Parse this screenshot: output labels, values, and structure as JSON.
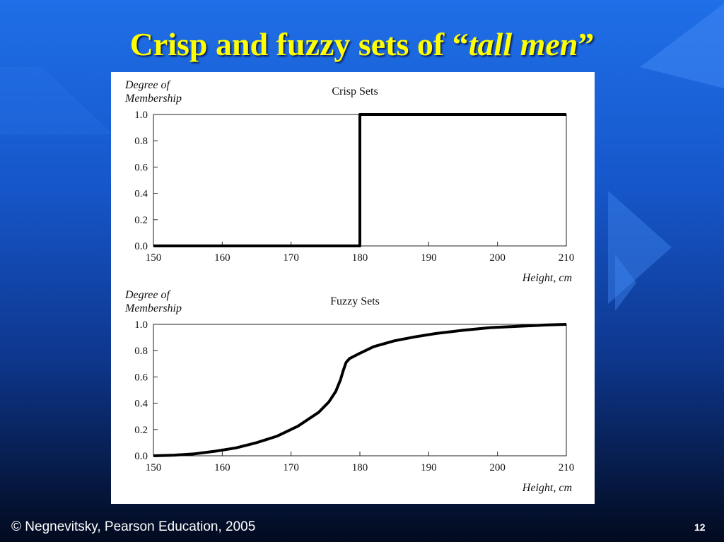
{
  "slide": {
    "title_pre": "Crisp and fuzzy sets of “",
    "title_em": "tall men",
    "title_post": "”",
    "footer": "© Negnevitsky, Pearson Education, 2005",
    "page_number": "12"
  },
  "colors": {
    "title": "#ffff00",
    "curve": "#000000",
    "panel": "#ffffff"
  },
  "chart_data": [
    {
      "type": "line",
      "title": "Crisp Sets",
      "ylabel_line1": "Degree of",
      "ylabel_line2": "Membership",
      "xlabel": "Height, cm",
      "xlim": [
        150,
        210
      ],
      "ylim": [
        0,
        1
      ],
      "x_ticks": [
        150,
        160,
        170,
        180,
        190,
        200,
        210
      ],
      "x_tick_labels": [
        "150",
        "160",
        "170",
        "180",
        "190",
        "200",
        "210"
      ],
      "y_ticks": [
        0,
        0.2,
        0.4,
        0.6,
        0.8,
        1.0
      ],
      "y_tick_labels": [
        "0.0",
        "0.2",
        "0.4",
        "0.6",
        "0.8",
        "1.0"
      ],
      "grid": false,
      "series": [
        {
          "x": [
            150,
            180,
            180,
            210
          ],
          "y": [
            0,
            0,
            1,
            1
          ]
        }
      ]
    },
    {
      "type": "line",
      "title": "Fuzzy Sets",
      "ylabel_line1": "Degree of",
      "ylabel_line2": "Membership",
      "xlabel": "Height, cm",
      "xlim": [
        150,
        210
      ],
      "ylim": [
        0,
        1
      ],
      "x_ticks": [
        150,
        160,
        170,
        180,
        190,
        200,
        210
      ],
      "x_tick_labels": [
        "150",
        "160",
        "170",
        "180",
        "190",
        "200",
        "210"
      ],
      "y_ticks": [
        0,
        0.2,
        0.4,
        0.6,
        0.8,
        1.0
      ],
      "y_tick_labels": [
        "0.0",
        "0.2",
        "0.4",
        "0.6",
        "0.8",
        "1.0"
      ],
      "grid": false,
      "series": [
        {
          "x": [
            150,
            153,
            156,
            159,
            162,
            165,
            168,
            171,
            174,
            175.5,
            176.5,
            177.2,
            177.6,
            178,
            178.5,
            180,
            182,
            185,
            188,
            191,
            195,
            199,
            203,
            207,
            210
          ],
          "y": [
            0.0,
            0.005,
            0.015,
            0.035,
            0.06,
            0.1,
            0.15,
            0.225,
            0.33,
            0.41,
            0.49,
            0.58,
            0.65,
            0.71,
            0.74,
            0.78,
            0.83,
            0.875,
            0.905,
            0.93,
            0.955,
            0.975,
            0.985,
            0.995,
            1.0
          ]
        }
      ]
    }
  ]
}
